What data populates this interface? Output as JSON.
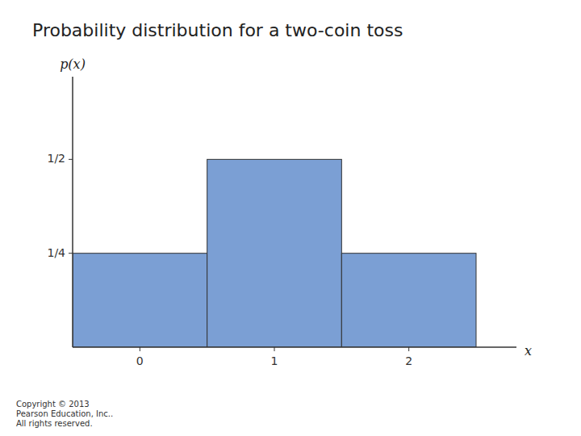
{
  "chart_data": {
    "type": "bar",
    "title": "Probability distribution for a two-coin toss",
    "x_label": "x",
    "y_label": "p(x)",
    "x": [
      0,
      1,
      2
    ],
    "values": [
      0.25,
      0.5,
      0.25
    ],
    "color": "#7b9fd4",
    "xlim": [
      -0.5,
      2.8
    ],
    "xticks": [
      0,
      1,
      2
    ],
    "ylim": [
      0,
      0.72
    ],
    "yticks": [
      {
        "value": 0.25,
        "label": "1/4"
      },
      {
        "value": 0.5,
        "label": "1/2"
      }
    ],
    "grid": false,
    "annotations": [
      "Copyright © 2013\nPearson Education, Inc..\nAll rights reserved."
    ]
  }
}
